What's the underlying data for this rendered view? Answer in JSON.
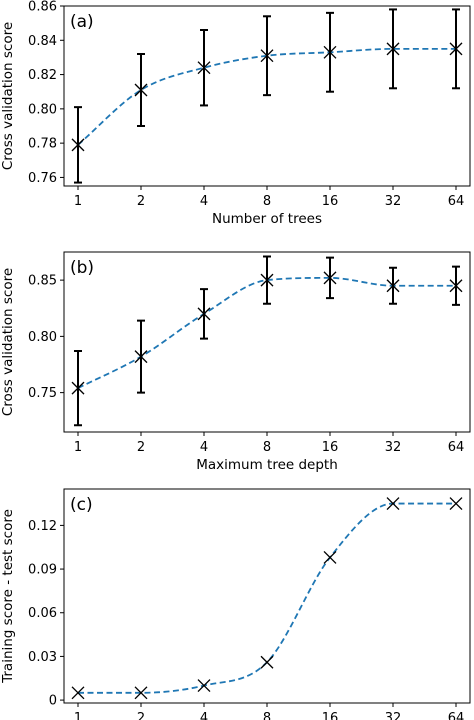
{
  "chart_data": [
    {
      "type": "line",
      "panel_label": "(a)",
      "xlabel": "Number of trees",
      "ylabel": "Cross validation score",
      "categories": [
        "1",
        "2",
        "4",
        "8",
        "16",
        "32",
        "64"
      ],
      "x": [
        1,
        2,
        4,
        8,
        16,
        32,
        64
      ],
      "x_scale": "log2",
      "values": [
        0.779,
        0.811,
        0.824,
        0.831,
        0.833,
        0.835,
        0.835
      ],
      "error": [
        0.022,
        0.021,
        0.022,
        0.023,
        0.023,
        0.023,
        0.023
      ],
      "ylim": [
        0.755,
        0.86
      ],
      "yticks": [
        0.76,
        0.78,
        0.8,
        0.82,
        0.84,
        0.86
      ],
      "ytick_labels": [
        "0.76",
        "0.78",
        "0.80",
        "0.82",
        "0.84",
        "0.86"
      ],
      "fit_curve": "dashed",
      "marker": "x",
      "fit_color": "#1f77b4"
    },
    {
      "type": "line",
      "panel_label": "(b)",
      "xlabel": "Maximum tree depth",
      "ylabel": "Cross validation score",
      "categories": [
        "1",
        "2",
        "4",
        "8",
        "16",
        "32",
        "64"
      ],
      "x": [
        1,
        2,
        4,
        8,
        16,
        32,
        64
      ],
      "x_scale": "log2",
      "values": [
        0.754,
        0.782,
        0.82,
        0.85,
        0.852,
        0.845,
        0.845
      ],
      "error": [
        0.033,
        0.032,
        0.022,
        0.021,
        0.018,
        0.016,
        0.017
      ],
      "ylim": [
        0.715,
        0.875
      ],
      "yticks": [
        0.75,
        0.8,
        0.85
      ],
      "ytick_labels": [
        "0.75",
        "0.80",
        "0.85"
      ],
      "fit_curve": "dashed",
      "marker": "x",
      "fit_color": "#1f77b4"
    },
    {
      "type": "line",
      "panel_label": "(c)",
      "xlabel": "Maximum tree depth",
      "ylabel": "Training score - test score",
      "categories": [
        "1",
        "2",
        "4",
        "8",
        "16",
        "32",
        "64"
      ],
      "x": [
        1,
        2,
        4,
        8,
        16,
        32,
        64
      ],
      "x_scale": "log2",
      "values": [
        0.005,
        0.005,
        0.01,
        0.026,
        0.098,
        0.135,
        0.135
      ],
      "ylim": [
        -0.002,
        0.145
      ],
      "yticks": [
        0,
        0.03,
        0.06,
        0.09,
        0.12
      ],
      "ytick_labels": [
        "0",
        "0.03",
        "0.06",
        "0.09",
        "0.12"
      ],
      "fit_curve": "dashed",
      "marker": "x",
      "fit_color": "#1f77b4"
    }
  ]
}
